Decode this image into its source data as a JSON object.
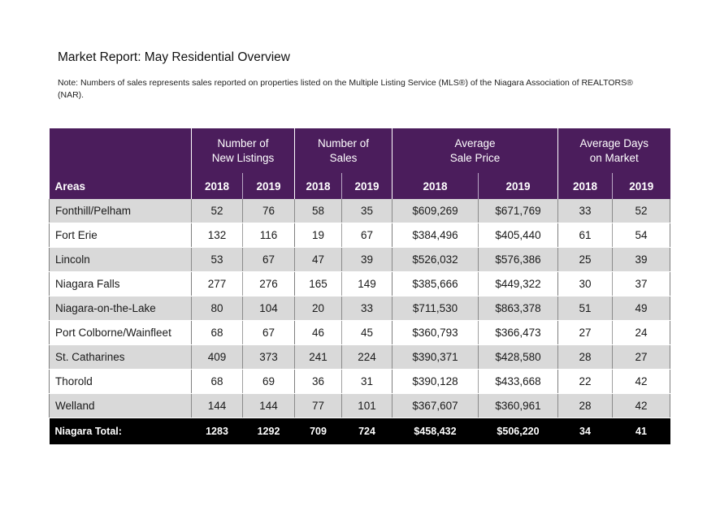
{
  "report": {
    "title": "Market Report: May Residential Overview",
    "note": "Note: Numbers of sales represents sales reported on properties listed on the Multiple Listing Service (MLS®) of the Niagara Association of REALTORS® (NAR)."
  },
  "table": {
    "group_headers": [
      {
        "line1": "Number of",
        "line2": "New Listings"
      },
      {
        "line1": "Number of",
        "line2": "Sales"
      },
      {
        "line1": "Average",
        "line2": "Sale Price"
      },
      {
        "line1": "Average Days",
        "line2": "on Market"
      }
    ],
    "area_header": "Areas",
    "years": [
      "2018",
      "2019"
    ],
    "rows": [
      {
        "area": "Fonthill/Pelham",
        "values": [
          "52",
          "76",
          "58",
          "35",
          "$609,269",
          "$671,769",
          "33",
          "52"
        ]
      },
      {
        "area": "Fort Erie",
        "values": [
          "132",
          "116",
          "19",
          "67",
          "$384,496",
          "$405,440",
          "61",
          "54"
        ]
      },
      {
        "area": "Lincoln",
        "values": [
          "53",
          "67",
          "47",
          "39",
          "$526,032",
          "$576,386",
          "25",
          "39"
        ]
      },
      {
        "area": "Niagara Falls",
        "values": [
          "277",
          "276",
          "165",
          "149",
          "$385,666",
          "$449,322",
          "30",
          "37"
        ]
      },
      {
        "area": "Niagara-on-the-Lake",
        "values": [
          "80",
          "104",
          "20",
          "33",
          "$711,530",
          "$863,378",
          "51",
          "49"
        ]
      },
      {
        "area": "Port Colborne/Wainfleet",
        "values": [
          "68",
          "67",
          "46",
          "45",
          "$360,793",
          "$366,473",
          "27",
          "24"
        ]
      },
      {
        "area": "St. Catharines",
        "values": [
          "409",
          "373",
          "241",
          "224",
          "$390,371",
          "$428,580",
          "28",
          "27"
        ]
      },
      {
        "area": "Thorold",
        "values": [
          "68",
          "69",
          "36",
          "31",
          "$390,128",
          "$433,668",
          "22",
          "42"
        ]
      },
      {
        "area": "Welland",
        "values": [
          "144",
          "144",
          "77",
          "101",
          "$367,607",
          "$360,961",
          "28",
          "42"
        ]
      }
    ],
    "total": {
      "area": "Niagara Total:",
      "values": [
        "1283",
        "1292",
        "709",
        "724",
        "$458,432",
        "$506,220",
        "34",
        "41"
      ]
    }
  },
  "colors": {
    "header_purple": "#4b1d5c",
    "row_shade": "#d9d9d9",
    "total_bg": "#000000"
  }
}
